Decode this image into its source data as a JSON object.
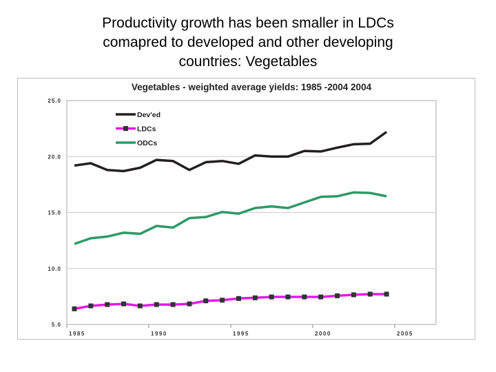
{
  "slide": {
    "title_lines": [
      "Productivity growth has been smaller in LDCs",
      "comapred to developed and other developing",
      "countries: Vegetables"
    ]
  },
  "chart_data": {
    "type": "line",
    "title": "Vegetables - weighted average yields: 1985 -2004 2004",
    "x": [
      1985,
      1986,
      1987,
      1988,
      1989,
      1990,
      1991,
      1992,
      1993,
      1994,
      1995,
      1996,
      1997,
      1998,
      1999,
      2000,
      2001,
      2002,
      2003,
      2004
    ],
    "x_ticks": [
      "1985",
      "1990",
      "1995",
      "2000",
      "2005"
    ],
    "y_ticks": [
      "5.0",
      "10.0",
      "15.0",
      "20.0",
      "25.0"
    ],
    "ylim": [
      5,
      25
    ],
    "grid": "horizontal",
    "legend_position": "top-left",
    "series": [
      {
        "name": "Dev'ed",
        "color": "#231f20",
        "marker": "none",
        "values": [
          19.2,
          19.4,
          18.8,
          18.7,
          19.0,
          19.7,
          19.6,
          18.8,
          19.5,
          19.6,
          19.35,
          20.1,
          20.0,
          20.0,
          20.5,
          20.45,
          20.8,
          21.1,
          21.15,
          22.2
        ]
      },
      {
        "name": "LDCs",
        "color": "#e619e6",
        "marker": "square",
        "marker_color": "#333333",
        "values": [
          6.4,
          6.66,
          6.78,
          6.84,
          6.66,
          6.78,
          6.78,
          6.84,
          7.11,
          7.17,
          7.32,
          7.38,
          7.46,
          7.46,
          7.46,
          7.46,
          7.56,
          7.65,
          7.71,
          7.71
        ]
      },
      {
        "name": "ODCs",
        "color": "#2e9966",
        "marker": "none",
        "values": [
          12.2,
          12.7,
          12.85,
          13.2,
          13.1,
          13.8,
          13.65,
          14.5,
          14.6,
          15.05,
          14.9,
          15.4,
          15.55,
          15.4,
          15.9,
          16.4,
          16.45,
          16.8,
          16.75,
          16.45
        ]
      }
    ]
  }
}
